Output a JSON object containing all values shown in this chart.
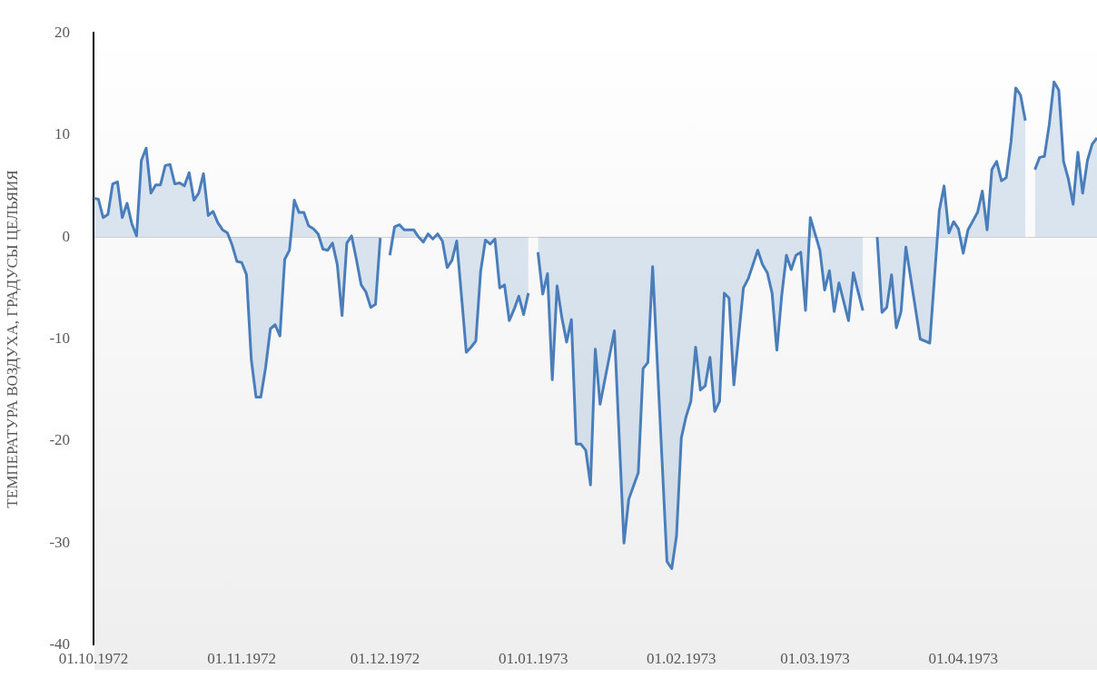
{
  "chart_data": {
    "type": "area",
    "ylabel": "ТЕМПЕРАТУРА ВОЗДУХА, ГРАДУСЫ ЦЕЛЬЯИЯ",
    "xlim": [
      "1972-10-01",
      "1973-04-29"
    ],
    "xticks": [
      {
        "value": "1972-10-01",
        "label": "01.10.1972"
      },
      {
        "value": "1972-11-01",
        "label": "01.11.1972"
      },
      {
        "value": "1972-12-01",
        "label": "01.12.1972"
      },
      {
        "value": "1973-01-01",
        "label": "01.01.1973"
      },
      {
        "value": "1973-02-01",
        "label": "01.02.1973"
      },
      {
        "value": "1973-03-01",
        "label": "01.03.1973"
      },
      {
        "value": "1973-04-01",
        "label": "01.04.1973"
      }
    ],
    "ylim": [
      -40,
      20
    ],
    "yticks": [
      -40,
      -30,
      -20,
      -10,
      0,
      10,
      20
    ],
    "series": [
      {
        "color": "#4a7ebb",
        "x": [
          "1972-10-01",
          "1972-10-02",
          "1972-10-03",
          "1972-10-04",
          "1972-10-05",
          "1972-10-06",
          "1972-10-07",
          "1972-10-08",
          "1972-10-09",
          "1972-10-10",
          "1972-10-11",
          "1972-10-12",
          "1972-10-13",
          "1972-10-14",
          "1972-10-15",
          "1972-10-16",
          "1972-10-17",
          "1972-10-18",
          "1972-10-19",
          "1972-10-20",
          "1972-10-21",
          "1972-10-22",
          "1972-10-23",
          "1972-10-24",
          "1972-10-25",
          "1972-10-26",
          "1972-10-27",
          "1972-10-28",
          "1972-10-29",
          "1972-10-30",
          "1972-10-31",
          "1972-11-01",
          "1972-11-02",
          "1972-11-03",
          "1972-11-04",
          "1972-11-05",
          "1972-11-06",
          "1972-11-07",
          "1972-11-08",
          "1972-11-09",
          "1972-11-10",
          "1972-11-11",
          "1972-11-12",
          "1972-11-13",
          "1972-11-14",
          "1972-11-15",
          "1972-11-16",
          "1972-11-17",
          "1972-11-18",
          "1972-11-19",
          "1972-11-20",
          "1972-11-21",
          "1972-11-22",
          "1972-11-23",
          "1972-11-24",
          "1972-11-25",
          "1972-11-26",
          "1972-11-27",
          "1972-11-28",
          "1972-11-29",
          "1972-11-30",
          "1972-12-01",
          "1972-12-02",
          "1972-12-03",
          "1972-12-04",
          "1972-12-05",
          "1972-12-06",
          "1972-12-07",
          "1972-12-08",
          "1972-12-09",
          "1972-12-10",
          "1972-12-11",
          "1972-12-12",
          "1972-12-13",
          "1972-12-14",
          "1972-12-15",
          "1972-12-16",
          "1972-12-17",
          "1972-12-18",
          "1972-12-19",
          "1972-12-20",
          "1972-12-21",
          "1972-12-22",
          "1972-12-23",
          "1972-12-24",
          "1972-12-25",
          "1972-12-26",
          "1972-12-27",
          "1972-12-28",
          "1972-12-29",
          "1972-12-30",
          "1972-12-31",
          "1973-01-01",
          "1973-01-02",
          "1973-01-03",
          "1973-01-04",
          "1973-01-05",
          "1973-01-06",
          "1973-01-07",
          "1973-01-08",
          "1973-01-09",
          "1973-01-10",
          "1973-01-11",
          "1973-01-12",
          "1973-01-13",
          "1973-01-14",
          "1973-01-15",
          "1973-01-18",
          "1973-01-20",
          "1973-01-21",
          "1973-01-23",
          "1973-01-24",
          "1973-01-25",
          "1973-01-26",
          "1973-01-29",
          "1973-01-30",
          "1973-01-31",
          "1973-02-01",
          "1973-02-02",
          "1973-02-03",
          "1973-02-04",
          "1973-02-05",
          "1973-02-06",
          "1973-02-07",
          "1973-02-08",
          "1973-02-09",
          "1973-02-10",
          "1973-02-11",
          "1973-02-12",
          "1973-02-14",
          "1973-02-15",
          "1973-02-17",
          "1973-02-18",
          "1973-02-19",
          "1973-02-20",
          "1973-02-21",
          "1973-02-22",
          "1973-02-23",
          "1973-02-24",
          "1973-02-25",
          "1973-02-26",
          "1973-02-27",
          "1973-02-28",
          "1973-03-02",
          "1973-03-03",
          "1973-03-04",
          "1973-03-05",
          "1973-03-06",
          "1973-03-08",
          "1973-03-09",
          "1973-03-11",
          "1973-03-12",
          "1973-03-13",
          "1973-03-14",
          "1973-03-15",
          "1973-03-16",
          "1973-03-17",
          "1973-03-18",
          "1973-03-19",
          "1973-03-20",
          "1973-03-23",
          "1973-03-25",
          "1973-03-27",
          "1973-03-28",
          "1973-03-29",
          "1973-03-30",
          "1973-03-31",
          "1973-04-01",
          "1973-04-02",
          "1973-04-04",
          "1973-04-05",
          "1973-04-06",
          "1973-04-07",
          "1973-04-08",
          "1973-04-09",
          "1973-04-10",
          "1973-04-11",
          "1973-04-12",
          "1973-04-13",
          "1973-04-14",
          "1973-04-15",
          "1973-04-16",
          "1973-04-17",
          "1973-04-18",
          "1973-04-19",
          "1973-04-20",
          "1973-04-21",
          "1973-04-22",
          "1973-04-23",
          "1973-04-24",
          "1973-04-25",
          "1973-04-26",
          "1973-04-27",
          "1973-04-28",
          "1973-04-29"
        ],
        "values": [
          3.8,
          3.7,
          1.9,
          2.2,
          5.2,
          5.4,
          1.9,
          3.3,
          1.3,
          0.1,
          7.5,
          8.7,
          4.3,
          5.1,
          5.1,
          7.0,
          7.1,
          5.2,
          5.3,
          5.0,
          6.3,
          3.6,
          4.3,
          6.2,
          2.1,
          2.5,
          1.4,
          0.7,
          0.4,
          -0.8,
          -2.4,
          -2.5,
          -3.7,
          -12.0,
          -15.7,
          -15.7,
          -12.8,
          -9.0,
          -8.6,
          -9.7,
          -2.2,
          -1.3,
          3.6,
          2.4,
          2.4,
          1.1,
          0.8,
          0.3,
          -1.2,
          -1.3,
          -0.6,
          -2.7,
          -7.7,
          -0.6,
          0.1,
          -2.2,
          -4.7,
          -5.4,
          -6.9,
          -6.6,
          -0.1,
          null,
          -1.8,
          1.0,
          1.2,
          0.7,
          0.7,
          0.7,
          0.0,
          -0.5,
          0.3,
          -0.2,
          0.3,
          -0.4,
          -3.0,
          -2.3,
          -0.4,
          -5.8,
          -11.3,
          -10.8,
          -10.2,
          -3.4,
          -0.3,
          -0.7,
          -0.2,
          -5.0,
          -4.7,
          -8.2,
          -7.1,
          -5.8,
          -7.6,
          -5.5,
          null,
          -1.5,
          -5.6,
          -3.6,
          -14.0,
          -4.8,
          -7.9,
          -10.3,
          -8.1,
          -20.3,
          -20.3,
          -20.9,
          -24.3,
          -11.0,
          -16.4,
          -9.2,
          -30.0,
          -25.7,
          -23.1,
          -12.9,
          -12.3,
          -2.9,
          -31.8,
          -32.5,
          -29.3,
          -19.7,
          -17.6,
          -16.1,
          -10.8,
          -15.0,
          -14.6,
          -11.8,
          -17.1,
          -16.1,
          -5.5,
          -6.0,
          -14.5,
          -5.0,
          -4.1,
          -1.3,
          -2.7,
          -3.5,
          -5.5,
          -11.1,
          -5.8,
          -1.8,
          -3.2,
          -1.8,
          -1.5,
          -7.2,
          1.9,
          -1.3,
          -5.2,
          -3.3,
          -7.3,
          -4.5,
          -8.2,
          -3.5,
          -7.2,
          null,
          null,
          0.0,
          -7.4,
          -6.9,
          -3.7,
          -8.9,
          -7.3,
          -1.0,
          -10.0,
          -10.4,
          2.6,
          5.0,
          0.4,
          1.5,
          0.8,
          -1.6,
          0.7,
          2.4,
          4.5,
          0.7,
          6.6,
          7.4,
          5.5,
          5.8,
          9.3,
          14.6,
          13.9,
          11.4,
          null,
          6.6,
          7.8,
          7.9,
          11.0,
          15.2,
          14.4,
          7.4,
          5.7,
          3.2,
          8.3,
          4.3,
          7.5,
          9.1,
          9.7
        ]
      }
    ]
  }
}
